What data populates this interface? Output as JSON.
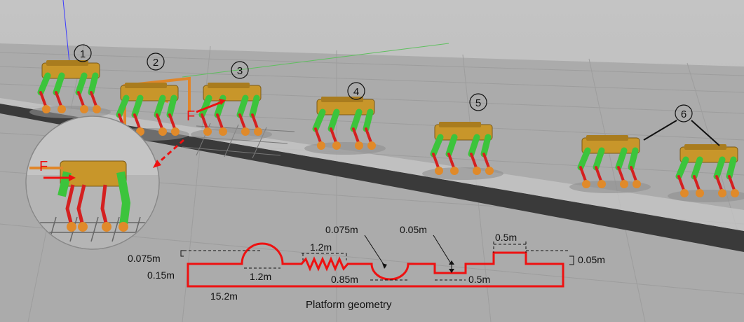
{
  "steps": [
    "1",
    "2",
    "3",
    "4",
    "5",
    "6"
  ],
  "force_label": "F",
  "dimensions": {
    "bump_height": "0.075m",
    "bump_width": "1.2m",
    "platform_height": "0.15m",
    "platform_length": "15.2m",
    "zigzag_length": "1.2m",
    "dip_depth": "0.075m",
    "dip_width": "0.85m",
    "step_down": "0.05m",
    "step_down_width": "0.5m",
    "step_up_width": "0.5m",
    "step_up": "0.05m"
  },
  "caption": "Platform geometry",
  "colors": {
    "platform_outline": "#e11",
    "robot_body": "#c8962a",
    "robot_leg_upper": "#3cc43c",
    "robot_leg_lower": "#d42020"
  }
}
